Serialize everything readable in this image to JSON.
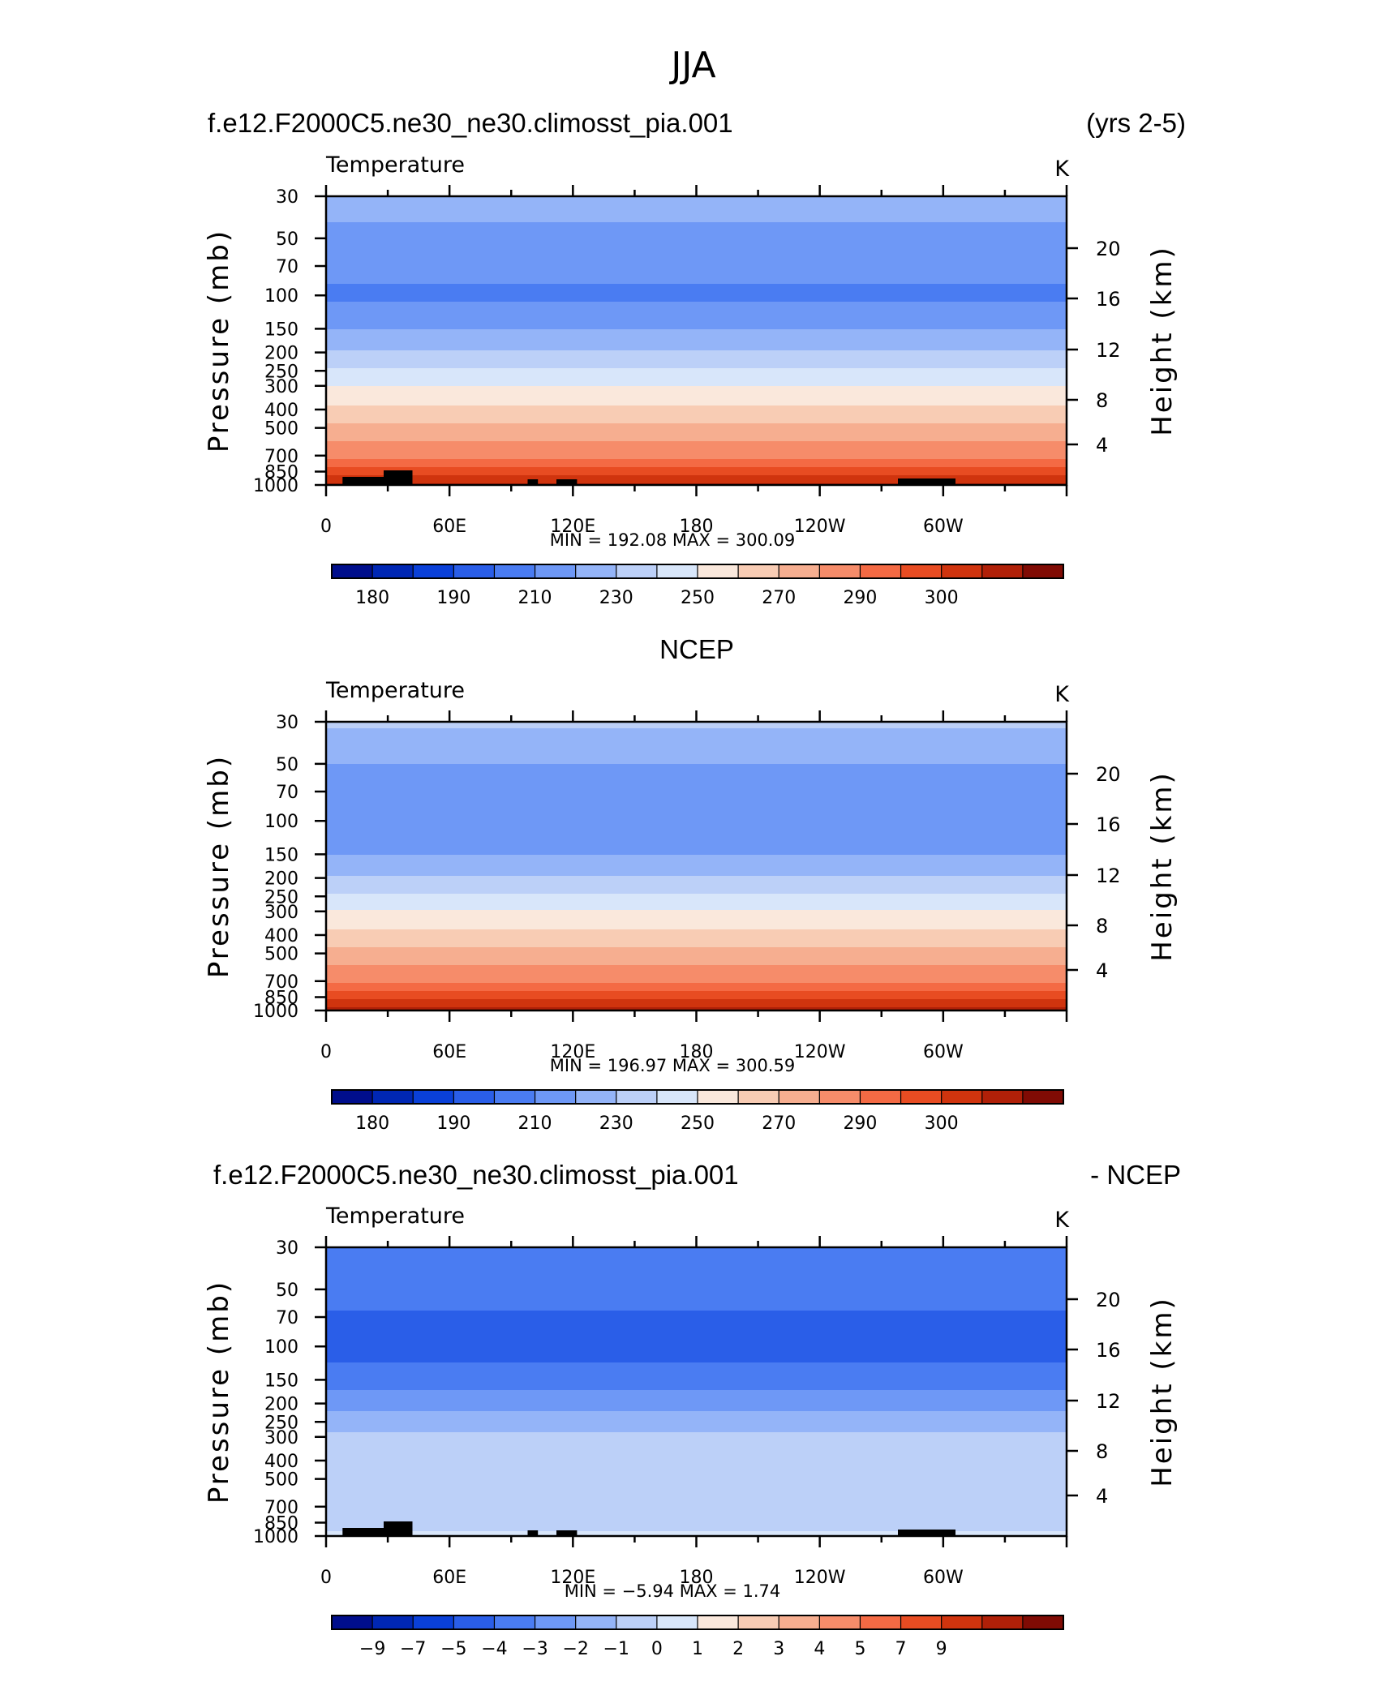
{
  "page": {
    "season": "JJA",
    "top_header_left": "f.e12.F2000C5.ne30_ne30.climosst_pia.001",
    "top_header_right": "(yrs 2-5)",
    "middle_header": "NCEP",
    "bottom_header_left": "f.e12.F2000C5.ne30_ne30.climosst_pia.001",
    "bottom_header_right": "- NCEP"
  },
  "colors": {
    "abs_scale": [
      "#000e8c",
      "#0027b4",
      "#0a40d8",
      "#2a5ee8",
      "#4a7cf2",
      "#6e98f6",
      "#94b4f8",
      "#bcd0f8",
      "#d8e6fa",
      "#fae8dc",
      "#f8ccb4",
      "#f6ae90",
      "#f68c6a",
      "#f46a44",
      "#e84c22",
      "#d0340e",
      "#b02008",
      "#800b04"
    ],
    "diff_scale": [
      "#000e8c",
      "#0027b4",
      "#0a40d8",
      "#2a5ee8",
      "#4a7cf2",
      "#6e98f6",
      "#94b4f8",
      "#bcd0f8",
      "#d8e6fa",
      "#fae8dc",
      "#f8ccb4",
      "#f6ae90",
      "#f68c6a",
      "#f46a44",
      "#e84c22",
      "#d0340e",
      "#b02008",
      "#800b04"
    ],
    "terrain": "#000000"
  },
  "chart_data": [
    {
      "type": "heatmap",
      "title": "Temperature",
      "units": "K",
      "xlabel": "",
      "ylabel": "Pressure (mb)",
      "ylabel_right": "Height (km)",
      "x_ticks": [
        "0",
        "60E",
        "120E",
        "180",
        "120W",
        "60W"
      ],
      "y_ticks": [
        "30",
        "50",
        "70",
        "100",
        "150",
        "200",
        "250",
        "300",
        "400",
        "500",
        "700",
        "850",
        "1000"
      ],
      "y_ticks_right": [
        "20",
        "16",
        "12",
        "8",
        "4"
      ],
      "y_scale": "log",
      "stats": "MIN = 192.08 MAX = 300.09",
      "min": 192.08,
      "max": 300.09,
      "colorbar_labels": [
        "180",
        "190",
        "210",
        "230",
        "250",
        "270",
        "290",
        "300"
      ],
      "levels": [
        175,
        180,
        185,
        190,
        200,
        210,
        220,
        230,
        240,
        250,
        260,
        270,
        280,
        285,
        290,
        295,
        300
      ],
      "profile": {
        "pressure_mb": [
          30,
          50,
          70,
          100,
          150,
          200,
          250,
          300,
          400,
          500,
          700,
          850,
          1000
        ],
        "temperature_K": [
          215,
          207,
          203,
          198,
          210,
          221,
          232,
          240,
          252,
          263,
          278,
          288,
          296
        ]
      }
    },
    {
      "type": "heatmap",
      "title": "Temperature",
      "units": "K",
      "xlabel": "",
      "ylabel": "Pressure (mb)",
      "ylabel_right": "Height (km)",
      "x_ticks": [
        "0",
        "60E",
        "120E",
        "180",
        "120W",
        "60W"
      ],
      "y_ticks": [
        "30",
        "50",
        "70",
        "100",
        "150",
        "200",
        "250",
        "300",
        "400",
        "500",
        "700",
        "850",
        "1000"
      ],
      "y_ticks_right": [
        "20",
        "16",
        "12",
        "8",
        "4"
      ],
      "y_scale": "log",
      "stats": "MIN = 196.97 MAX = 300.59",
      "min": 196.97,
      "max": 300.59,
      "colorbar_labels": [
        "180",
        "190",
        "210",
        "230",
        "250",
        "270",
        "290",
        "300"
      ],
      "levels": [
        175,
        180,
        185,
        190,
        200,
        210,
        220,
        230,
        240,
        250,
        260,
        270,
        280,
        285,
        290,
        295,
        300
      ],
      "profile": {
        "pressure_mb": [
          30,
          50,
          70,
          100,
          150,
          200,
          250,
          300,
          400,
          500,
          700,
          850,
          1000
        ],
        "temperature_K": [
          222,
          210,
          205,
          201,
          210,
          221,
          232,
          241,
          253,
          264,
          279,
          289,
          297
        ]
      }
    },
    {
      "type": "heatmap",
      "title": "Temperature",
      "units": "K",
      "xlabel": "",
      "ylabel": "Pressure (mb)",
      "ylabel_right": "Height (km)",
      "x_ticks": [
        "0",
        "60E",
        "120E",
        "180",
        "120W",
        "60W"
      ],
      "y_ticks": [
        "30",
        "50",
        "70",
        "100",
        "150",
        "200",
        "250",
        "300",
        "400",
        "500",
        "700",
        "850",
        "1000"
      ],
      "y_ticks_right": [
        "20",
        "16",
        "12",
        "8",
        "4"
      ],
      "y_scale": "log",
      "stats": "MIN = −5.94 MAX = 1.74",
      "min": -5.94,
      "max": 1.74,
      "colorbar_labels": [
        "−9",
        "−7",
        "−5",
        "−4",
        "−3",
        "−2",
        "−1",
        "0",
        "1",
        "2",
        "3",
        "4",
        "5",
        "7",
        "9"
      ],
      "levels": [
        -9,
        -7,
        -5,
        -4,
        -3,
        -2,
        -1,
        0,
        1,
        2,
        3,
        4,
        5,
        7,
        9
      ],
      "profile": {
        "pressure_mb": [
          30,
          50,
          70,
          100,
          150,
          200,
          250,
          300,
          400,
          500,
          700,
          850,
          1000
        ],
        "difference_K": [
          -3.0,
          -3.4,
          -4.2,
          -4.6,
          -3.4,
          -2.4,
          -1.5,
          -0.8,
          -0.6,
          -0.7,
          -0.5,
          -0.3,
          0.2
        ]
      }
    }
  ]
}
